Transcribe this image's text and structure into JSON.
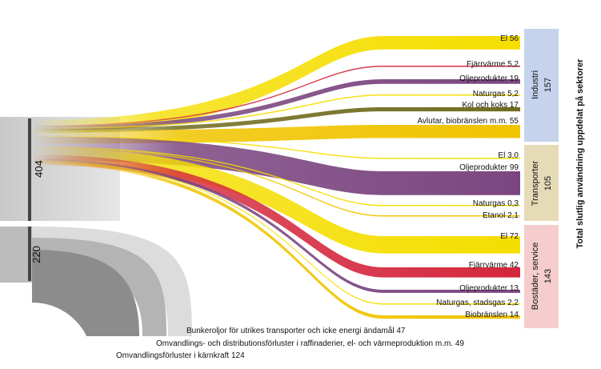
{
  "title": "Total slutlig användning uppdelat på sektorer",
  "inputs": {
    "total_value": "404",
    "loss_total_value": "220"
  },
  "sectors": [
    {
      "key": "industri",
      "name": "Industri",
      "value": "157",
      "color": "#c5d3ec",
      "flows": [
        {
          "label": "El",
          "value": "56",
          "color": "#f5de00"
        },
        {
          "label": "Fjärrvärme",
          "value": "5,2",
          "color": "#d4263c"
        },
        {
          "label": "Oljeprodukter",
          "value": "19",
          "color": "#7b4680"
        },
        {
          "label": "Naturgas",
          "value": "5,2",
          "color": "#f5de00"
        },
        {
          "label": "Kol och koks",
          "value": "17",
          "color": "#706c1f"
        },
        {
          "label": "Avlutar, biobränslen m.m.",
          "value": "55",
          "color": "#f0c400"
        }
      ]
    },
    {
      "key": "transporter",
      "name": "Transporter",
      "value": "105",
      "color": "#e6dbb7",
      "flows": [
        {
          "label": "El",
          "value": "3,0",
          "color": "#f5de00"
        },
        {
          "label": "Oljeprodukter",
          "value": "99",
          "color": "#7b4680"
        },
        {
          "label": "Naturgas",
          "value": "0,3",
          "color": "#f5de00"
        },
        {
          "label": "Etanol",
          "value": "2,1",
          "color": "#f0c400"
        }
      ]
    },
    {
      "key": "bostader",
      "name": "Bostäder, service",
      "value": "143",
      "color": "#f5cdcd",
      "flows": [
        {
          "label": "El",
          "value": "72",
          "color": "#f5de00"
        },
        {
          "label": "Fjärrvärme",
          "value": "42",
          "color": "#d4263c"
        },
        {
          "label": "Oljeprodukter",
          "value": "13",
          "color": "#7b4680"
        },
        {
          "label": "Naturgas, stadsgas",
          "value": "2,2",
          "color": "#f5de00"
        },
        {
          "label": "Biobränslen",
          "value": "14",
          "color": "#f0c400"
        }
      ]
    }
  ],
  "losses": [
    {
      "label": "Bunkeroljor för utrikes transporter och icke energi ändamål",
      "value": "47",
      "color": "#dcdcdc"
    },
    {
      "label": "Omvandlings- och distributionsförluster i raffinaderier, el- och värmeproduktion m.m.",
      "value": "49",
      "color": "#b4b4b4"
    },
    {
      "label": "Omvandlingsförluster i kärnkraft",
      "value": "124",
      "color": "#8c8c8c"
    }
  ]
}
